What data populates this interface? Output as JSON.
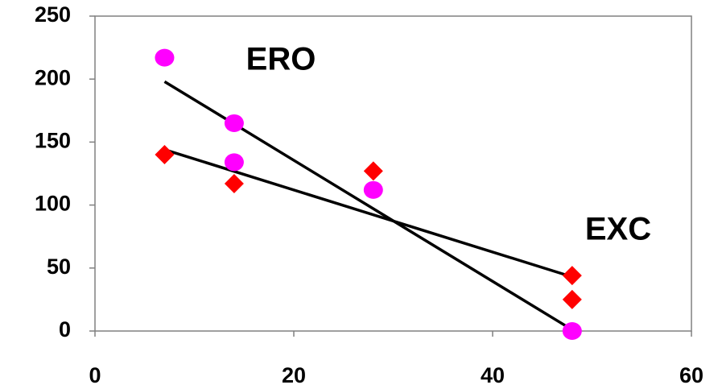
{
  "chart_data": {
    "type": "scatter",
    "xlim": [
      0,
      60
    ],
    "xticks": [
      0,
      20,
      40,
      60
    ],
    "ylim": [
      0,
      250
    ],
    "yticks": [
      0,
      50,
      100,
      150,
      200,
      250
    ],
    "grid": false,
    "series": [
      {
        "name": "ERO",
        "color": "#ff00ff",
        "marker": "circle",
        "x": [
          7,
          14,
          14,
          28,
          48
        ],
        "values": [
          217,
          165,
          134,
          112,
          0
        ],
        "trend_x": [
          7,
          48
        ],
        "trend": [
          198,
          1
        ]
      },
      {
        "name": "EXC",
        "color": "#ff0000",
        "marker": "diamond",
        "x": [
          7,
          14,
          28,
          48,
          48
        ],
        "values": [
          140,
          117,
          127,
          44,
          25
        ],
        "trend_x": [
          7,
          48
        ],
        "trend": [
          144,
          43
        ]
      }
    ]
  }
}
